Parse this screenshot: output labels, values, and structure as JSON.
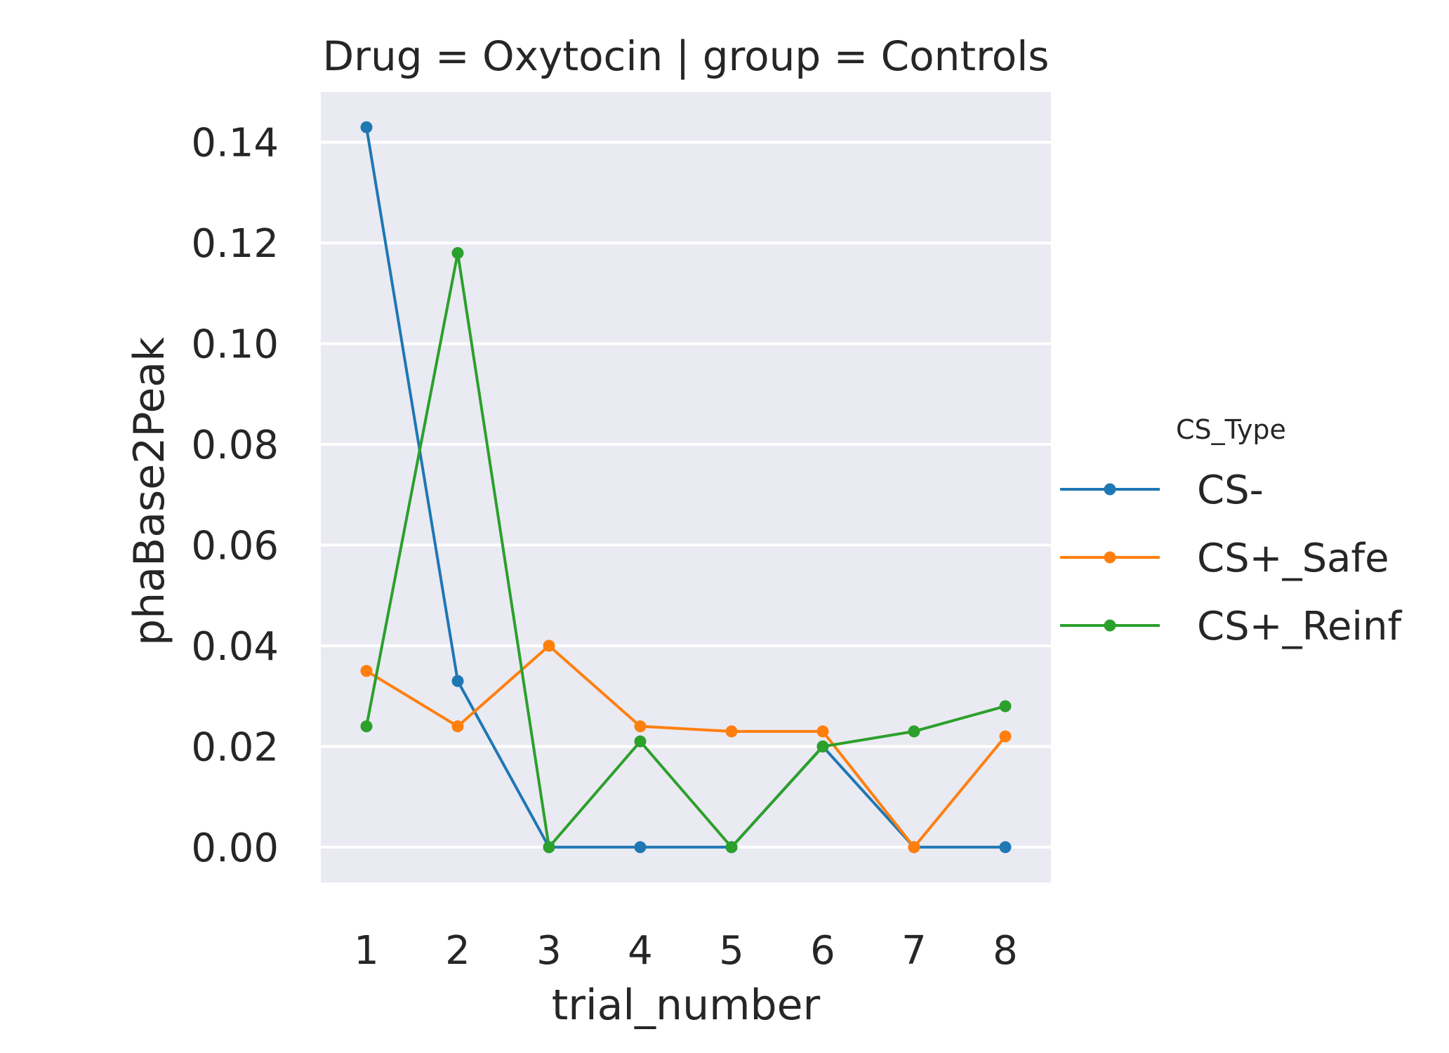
{
  "chart_data": {
    "type": "line",
    "title": "Drug = Oxytocin | group = Controls",
    "xlabel": "trial_number",
    "ylabel": "phaBase2Peak",
    "x": [
      1,
      2,
      3,
      4,
      5,
      6,
      7,
      8
    ],
    "x_ticks": [
      "1",
      "2",
      "3",
      "4",
      "5",
      "6",
      "7",
      "8"
    ],
    "y_ticks": [
      "0.00",
      "0.02",
      "0.04",
      "0.06",
      "0.08",
      "0.10",
      "0.12",
      "0.14"
    ],
    "y_tick_values": [
      0.0,
      0.02,
      0.04,
      0.06,
      0.08,
      0.1,
      0.12,
      0.14
    ],
    "xlim": [
      0.5,
      8.5
    ],
    "ylim": [
      -0.007,
      0.15
    ],
    "grid": true,
    "legend_title": "CS_Type",
    "legend_placement": "right",
    "background_color": "#eaeaf2",
    "series": [
      {
        "name": "CS-",
        "color": "#1f77b4",
        "values": [
          0.143,
          0.033,
          0.0,
          0.0,
          0.0,
          0.02,
          0.0,
          0.0
        ]
      },
      {
        "name": "CS+_Safe",
        "color": "#ff7f0e",
        "values": [
          0.035,
          0.024,
          0.04,
          0.024,
          0.023,
          0.023,
          0.0,
          0.022
        ]
      },
      {
        "name": "CS+_Reinf",
        "color": "#2ca02c",
        "values": [
          0.024,
          0.118,
          0.0,
          0.021,
          0.0,
          0.02,
          0.023,
          0.028
        ]
      }
    ]
  }
}
